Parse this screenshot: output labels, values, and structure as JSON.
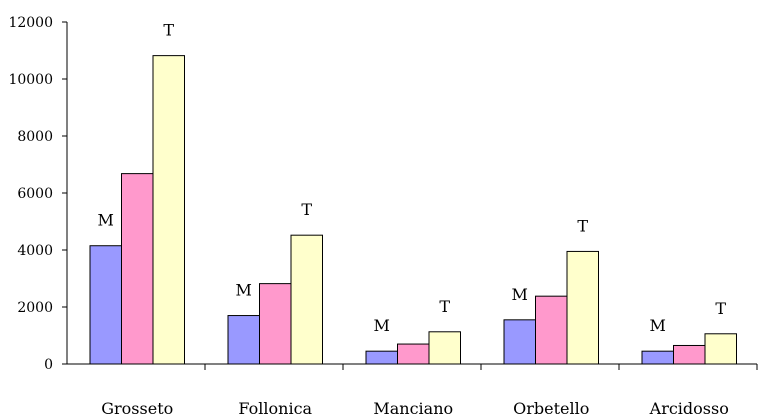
{
  "chart_data": {
    "type": "bar",
    "categories": [
      "Grosseto",
      "Follonica",
      "Manciano",
      "Orbetello",
      "Arcidosso"
    ],
    "series": [
      {
        "values": [
          4150,
          1700,
          450,
          1550,
          450
        ],
        "color": "#9999ff"
      },
      {
        "values": [
          6680,
          2820,
          700,
          2380,
          650
        ],
        "color": "#ff99cc"
      },
      {
        "values": [
          10820,
          4520,
          1130,
          3950,
          1060
        ],
        "color": "#ffffcc"
      }
    ],
    "data_labels": [
      {
        "category_index": 0,
        "series_index": 0,
        "text": "M"
      },
      {
        "category_index": 0,
        "series_index": 2,
        "text": "T"
      },
      {
        "category_index": 1,
        "series_index": 0,
        "text": "M"
      },
      {
        "category_index": 1,
        "series_index": 2,
        "text": "T"
      },
      {
        "category_index": 2,
        "series_index": 0,
        "text": "M"
      },
      {
        "category_index": 2,
        "series_index": 2,
        "text": "T"
      },
      {
        "category_index": 3,
        "series_index": 0,
        "text": "M"
      },
      {
        "category_index": 3,
        "series_index": 2,
        "text": "T"
      },
      {
        "category_index": 4,
        "series_index": 0,
        "text": "M"
      },
      {
        "category_index": 4,
        "series_index": 2,
        "text": "T"
      }
    ],
    "title": "",
    "xlabel": "",
    "ylabel": "",
    "ylim": [
      0,
      12000
    ],
    "yticks": [
      0,
      2000,
      4000,
      6000,
      8000,
      10000,
      12000
    ],
    "grid": false,
    "legend": "none"
  }
}
